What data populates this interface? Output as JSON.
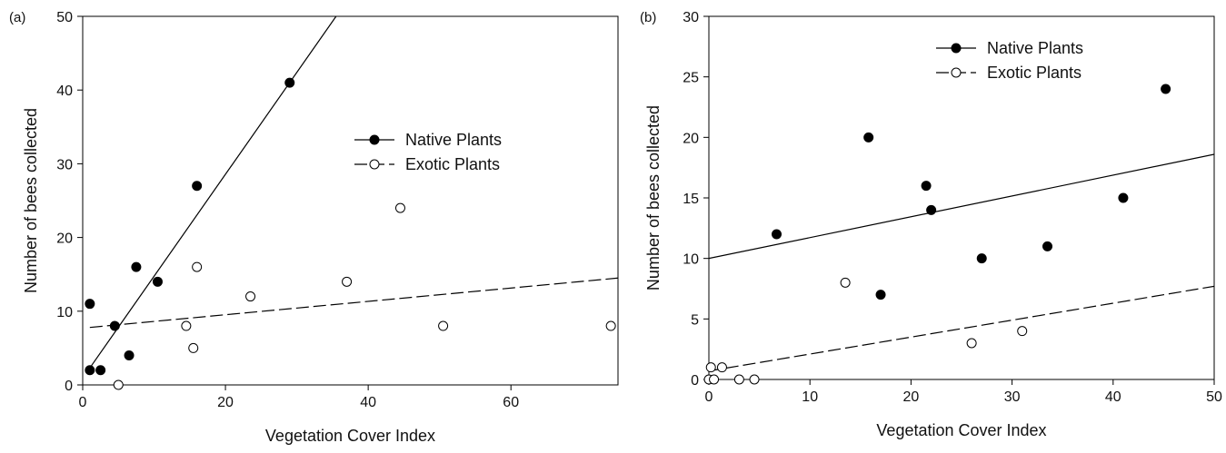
{
  "chart_data": [
    {
      "panel_label": "(a)",
      "type": "scatter",
      "xlabel": "Vegetation Cover Index",
      "ylabel": "Number of bees collected",
      "xlim": [
        0,
        75
      ],
      "ylim": [
        0,
        50
      ],
      "xticks": [
        0,
        20,
        40,
        60
      ],
      "yticks": [
        0,
        10,
        20,
        30,
        40,
        50
      ],
      "legend_position": "center-right",
      "series": [
        {
          "name": "Native Plants",
          "marker": "filled-circle",
          "line_style": "solid",
          "points": [
            [
              1,
              11
            ],
            [
              1,
              2
            ],
            [
              2.5,
              2
            ],
            [
              4.5,
              8
            ],
            [
              6.5,
              4
            ],
            [
              7.5,
              16
            ],
            [
              10.5,
              14
            ],
            [
              16,
              27
            ],
            [
              29,
              41
            ]
          ],
          "fit_line": [
            [
              1,
              2.3
            ],
            [
              35.5,
              50
            ]
          ]
        },
        {
          "name": "Exotic Plants",
          "marker": "open-circle",
          "line_style": "dashed",
          "points": [
            [
              5,
              0
            ],
            [
              14.5,
              8
            ],
            [
              15.5,
              5
            ],
            [
              16,
              16
            ],
            [
              23.5,
              12
            ],
            [
              37,
              14
            ],
            [
              44.5,
              24
            ],
            [
              50.5,
              8
            ],
            [
              74,
              8
            ]
          ],
          "fit_line": [
            [
              1,
              7.8
            ],
            [
              75,
              14.5
            ]
          ]
        }
      ]
    },
    {
      "panel_label": "(b)",
      "type": "scatter",
      "xlabel": "Vegetation Cover Index",
      "ylabel": "Number of bees collected",
      "xlim": [
        0,
        50
      ],
      "ylim": [
        0,
        30
      ],
      "xticks": [
        0,
        10,
        20,
        30,
        40,
        50
      ],
      "yticks": [
        0,
        5,
        10,
        15,
        20,
        25,
        30
      ],
      "legend_position": "top-center",
      "series": [
        {
          "name": "Native Plants",
          "marker": "filled-circle",
          "line_style": "solid",
          "points": [
            [
              6.7,
              12
            ],
            [
              15.8,
              20
            ],
            [
              17,
              7
            ],
            [
              21.5,
              16
            ],
            [
              22,
              14
            ],
            [
              27,
              10
            ],
            [
              33.5,
              11
            ],
            [
              41,
              15
            ],
            [
              45.2,
              24
            ]
          ],
          "fit_line": [
            [
              0,
              10
            ],
            [
              50,
              18.6
            ]
          ]
        },
        {
          "name": "Exotic Plants",
          "marker": "open-circle",
          "line_style": "dashed",
          "points": [
            [
              0,
              0
            ],
            [
              0.2,
              1
            ],
            [
              0.5,
              0
            ],
            [
              1.3,
              1
            ],
            [
              3,
              0
            ],
            [
              4.5,
              0
            ],
            [
              13.5,
              8
            ],
            [
              26,
              3
            ],
            [
              31,
              4
            ]
          ],
          "fit_line": [
            [
              0,
              0.7
            ],
            [
              50,
              7.7
            ]
          ]
        }
      ]
    }
  ]
}
